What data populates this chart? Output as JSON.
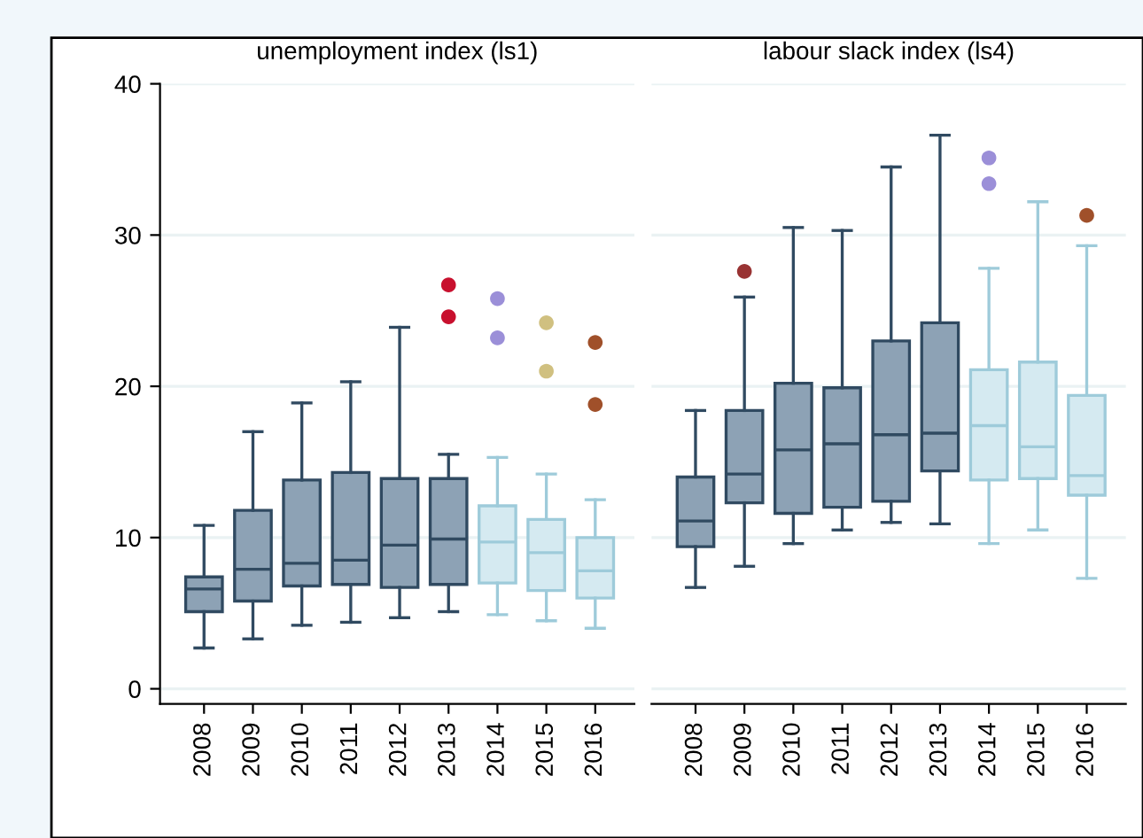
{
  "chart_data": [
    {
      "type": "box",
      "title": "unemployment index (ls1)",
      "categories": [
        "2008",
        "2009",
        "2010",
        "2011",
        "2012",
        "2013",
        "2014",
        "2015",
        "2016"
      ],
      "series": [
        {
          "color": "#8da2b5",
          "boxes": [
            {
              "low": 2.7,
              "q1": 5.1,
              "median": 6.6,
              "q3": 7.4,
              "high": 10.8
            },
            {
              "low": 3.3,
              "q1": 5.8,
              "median": 7.9,
              "q3": 11.8,
              "high": 17.0
            },
            {
              "low": 4.2,
              "q1": 6.8,
              "median": 8.3,
              "q3": 13.8,
              "high": 18.9
            },
            {
              "low": 4.4,
              "q1": 6.9,
              "median": 8.5,
              "q3": 14.3,
              "high": 20.3
            },
            {
              "low": 4.7,
              "q1": 6.7,
              "median": 9.5,
              "q3": 13.9,
              "high": 23.9
            },
            {
              "low": 5.1,
              "q1": 6.9,
              "median": 9.9,
              "q3": 13.9,
              "high": 15.5
            },
            null,
            null,
            null
          ]
        },
        {
          "color": "#d5eaf1",
          "boxes": [
            null,
            null,
            null,
            null,
            null,
            null,
            {
              "low": 4.9,
              "q1": 7.0,
              "median": 9.7,
              "q3": 12.1,
              "high": 15.3
            },
            {
              "low": 4.5,
              "q1": 6.5,
              "median": 9.0,
              "q3": 11.2,
              "high": 14.2
            },
            {
              "low": 4.0,
              "q1": 6.0,
              "median": 7.8,
              "q3": 10.0,
              "high": 12.5
            }
          ]
        },
        {
          "type": "scatter",
          "values": [
            null,
            null,
            null,
            null,
            null,
            26.7,
            25.8,
            24.2,
            22.9
          ],
          "colors": [
            null,
            null,
            null,
            null,
            null,
            "#c8102e",
            "#9b8fd8",
            "#d0c080",
            "#a0502a"
          ]
        },
        {
          "type": "scatter",
          "values": [
            null,
            null,
            null,
            null,
            null,
            24.6,
            23.2,
            21.0,
            18.8
          ],
          "colors": [
            null,
            null,
            null,
            null,
            null,
            "#c8102e",
            "#9b8fd8",
            "#d0c080",
            "#a0502a"
          ]
        }
      ],
      "ylim": [
        -1,
        40
      ],
      "yticks": [
        0,
        10,
        20,
        30,
        40
      ],
      "grid": "y",
      "marker": "circle"
    },
    {
      "type": "box",
      "title": "labour slack index (ls4)",
      "categories": [
        "2008",
        "2009",
        "2010",
        "2011",
        "2012",
        "2013",
        "2014",
        "2015",
        "2016"
      ],
      "series": [
        {
          "color": "#8da2b5",
          "boxes": [
            {
              "low": 6.7,
              "q1": 9.4,
              "median": 11.1,
              "q3": 14.0,
              "high": 18.4
            },
            {
              "low": 8.1,
              "q1": 12.3,
              "median": 14.2,
              "q3": 18.4,
              "high": 25.9
            },
            {
              "low": 9.6,
              "q1": 11.6,
              "median": 15.8,
              "q3": 20.2,
              "high": 30.5
            },
            {
              "low": 10.5,
              "q1": 12.0,
              "median": 16.2,
              "q3": 19.9,
              "high": 30.3
            },
            {
              "low": 11.0,
              "q1": 12.4,
              "median": 16.8,
              "q3": 23.0,
              "high": 34.5
            },
            {
              "low": 10.9,
              "q1": 14.4,
              "median": 16.9,
              "q3": 24.2,
              "high": 36.6
            },
            null,
            null,
            null
          ]
        },
        {
          "color": "#d5eaf1",
          "boxes": [
            null,
            null,
            null,
            null,
            null,
            null,
            {
              "low": 9.6,
              "q1": 13.8,
              "median": 17.4,
              "q3": 21.1,
              "high": 27.8
            },
            {
              "low": 10.5,
              "q1": 13.9,
              "median": 16.0,
              "q3": 21.6,
              "high": 32.2
            },
            {
              "low": 7.3,
              "q1": 12.8,
              "median": 14.1,
              "q3": 19.4,
              "high": 29.3
            }
          ]
        },
        {
          "type": "scatter",
          "values": [
            null,
            27.6,
            null,
            null,
            null,
            null,
            35.1,
            null,
            31.3
          ],
          "colors": [
            null,
            "#993333",
            null,
            null,
            null,
            null,
            "#9b8fd8",
            null,
            "#a0502a"
          ]
        },
        {
          "type": "scatter",
          "values": [
            null,
            null,
            null,
            null,
            null,
            null,
            33.4,
            null,
            null
          ],
          "colors": [
            null,
            null,
            null,
            null,
            null,
            null,
            "#9b8fd8",
            null,
            null
          ]
        }
      ],
      "ylim": [
        -1,
        40
      ],
      "yticks": [
        0,
        10,
        20,
        30,
        40
      ],
      "grid": "y",
      "marker": "circle",
      "tick_labels": "x"
    }
  ]
}
